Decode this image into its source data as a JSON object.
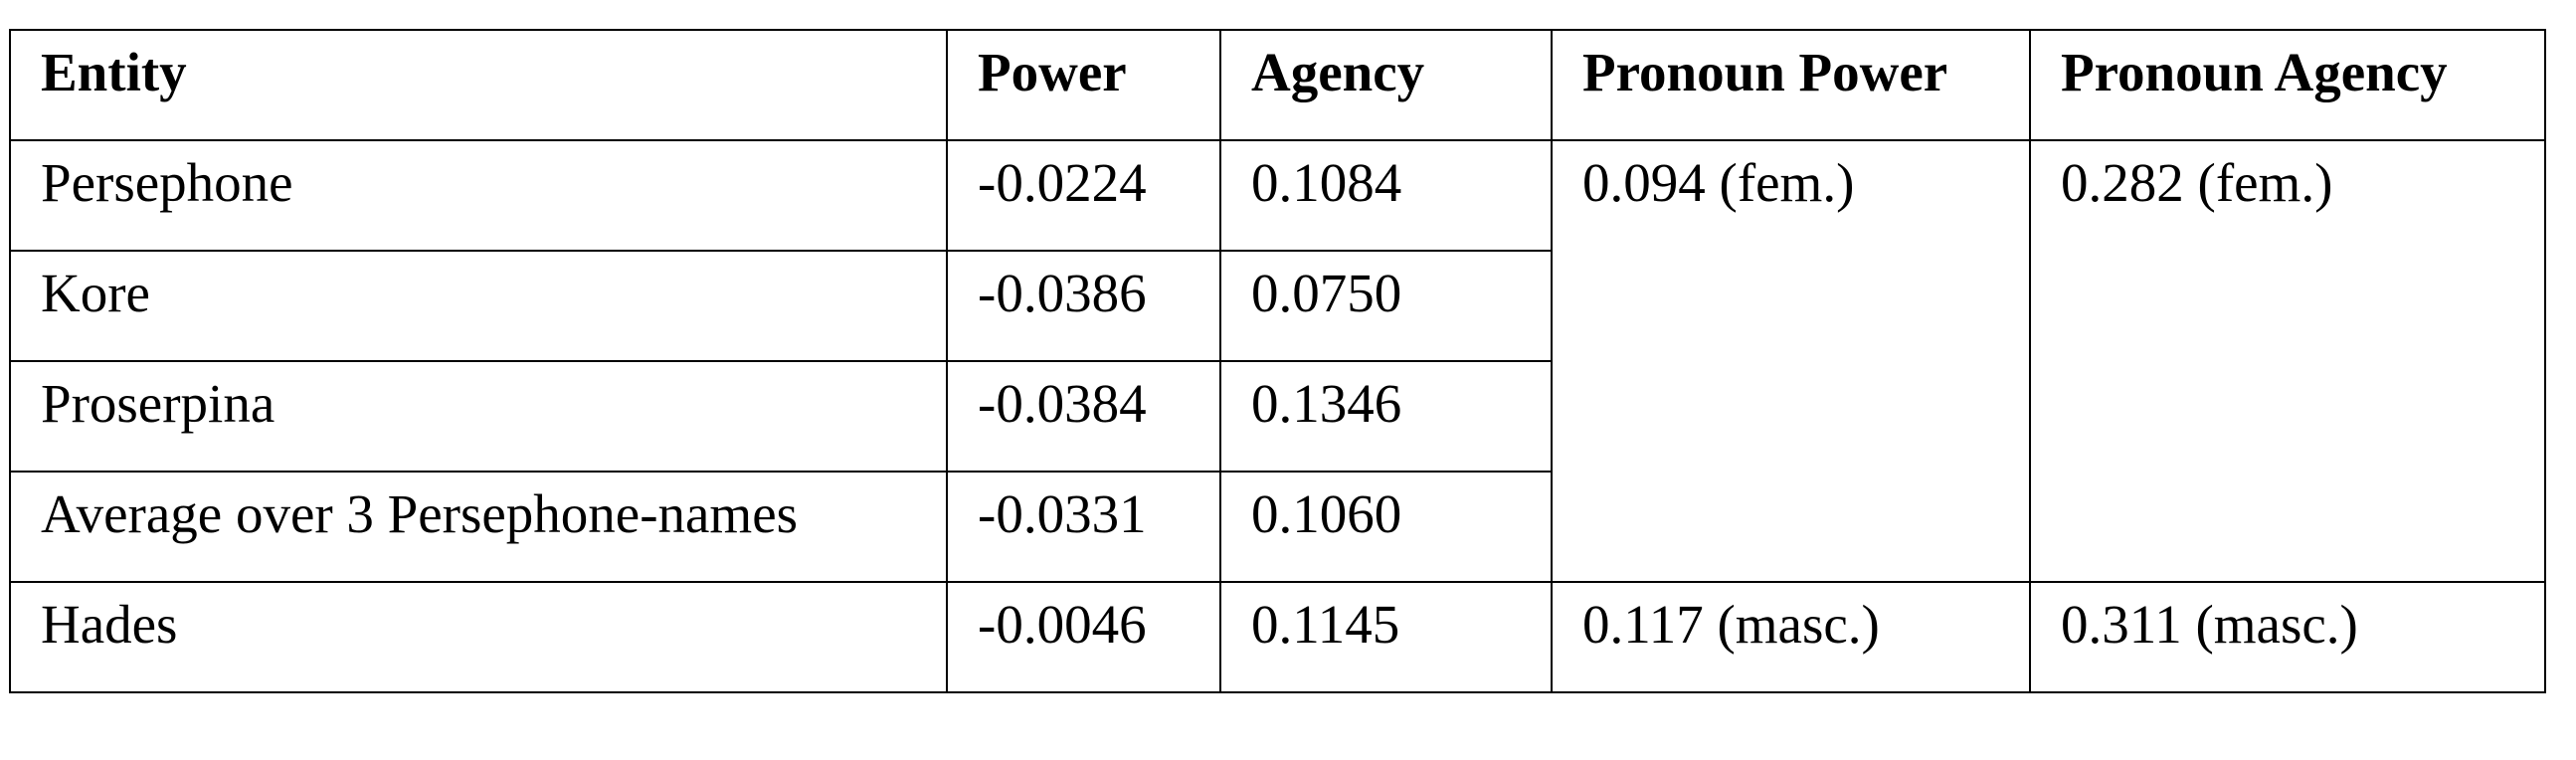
{
  "table": {
    "header": [
      "Entity",
      "Power",
      "Agency",
      "Pronoun Power",
      "Pronoun Agency"
    ],
    "rows": [
      [
        "Persephone",
        "-0.0224",
        "0.1084",
        "0.094 (fem.)",
        "0.282 (fem.)"
      ],
      [
        "Kore",
        "-0.0386",
        "0.0750"
      ],
      [
        "Proserpina",
        "-0.0384",
        "0.1346"
      ],
      [
        "Average over 3 Persephone-names",
        "-0.0331",
        "0.1060"
      ],
      [
        "Hades",
        "-0.0046",
        "0.1145",
        "0.117 (masc.)",
        "0.311 (masc.)"
      ]
    ]
  }
}
